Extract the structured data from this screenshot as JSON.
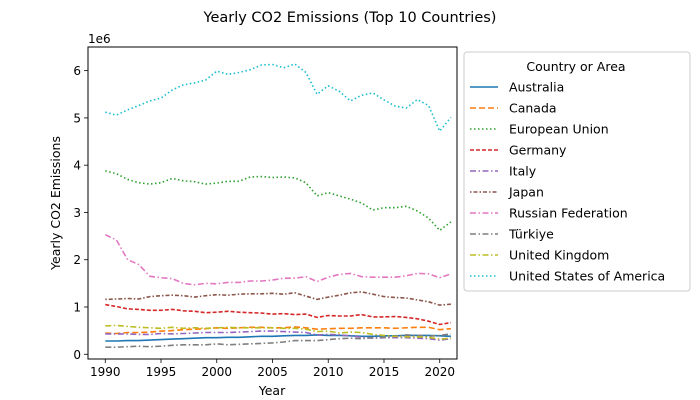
{
  "chart_data": {
    "type": "line",
    "title": "Yearly CO2 Emissions (Top 10 Countries)",
    "xlabel": "Year",
    "ylabel": "Yearly CO2 Emissions",
    "y_offset_label": "1e6",
    "xlim": [
      1988.45,
      2021.55
    ],
    "ylim": [
      -0.1,
      6.5
    ],
    "x_ticks": [
      1990,
      1995,
      2000,
      2005,
      2010,
      2015,
      2020
    ],
    "y_ticks": [
      0,
      1,
      2,
      3,
      4,
      5,
      6
    ],
    "grid": false,
    "legend": {
      "title": "Country or Area",
      "placement": "outside-right"
    },
    "x": [
      1990,
      1991,
      1992,
      1993,
      1994,
      1995,
      1996,
      1997,
      1998,
      1999,
      2000,
      2001,
      2002,
      2003,
      2004,
      2005,
      2006,
      2007,
      2008,
      2009,
      2010,
      2011,
      2012,
      2013,
      2014,
      2015,
      2016,
      2017,
      2018,
      2019,
      2020,
      2021
    ],
    "series": [
      {
        "name": "Australia",
        "color": "#1f77b4",
        "dash": "solid",
        "values": [
          0.28,
          0.28,
          0.29,
          0.29,
          0.3,
          0.31,
          0.32,
          0.33,
          0.34,
          0.35,
          0.35,
          0.36,
          0.36,
          0.37,
          0.38,
          0.38,
          0.39,
          0.4,
          0.4,
          0.41,
          0.4,
          0.4,
          0.39,
          0.38,
          0.38,
          0.39,
          0.39,
          0.4,
          0.4,
          0.4,
          0.39,
          0.38
        ]
      },
      {
        "name": "Canada",
        "color": "#ff7f0e",
        "dash": "dashed",
        "values": [
          0.45,
          0.44,
          0.46,
          0.46,
          0.47,
          0.49,
          0.5,
          0.52,
          0.53,
          0.54,
          0.56,
          0.55,
          0.56,
          0.57,
          0.57,
          0.56,
          0.56,
          0.58,
          0.56,
          0.53,
          0.54,
          0.55,
          0.55,
          0.56,
          0.56,
          0.56,
          0.55,
          0.56,
          0.57,
          0.57,
          0.52,
          0.54
        ]
      },
      {
        "name": "European Union",
        "color": "#2ca02c",
        "dash": "dotted",
        "values": [
          3.88,
          3.82,
          3.7,
          3.63,
          3.6,
          3.63,
          3.72,
          3.67,
          3.65,
          3.6,
          3.62,
          3.66,
          3.66,
          3.75,
          3.76,
          3.74,
          3.75,
          3.73,
          3.63,
          3.35,
          3.42,
          3.35,
          3.28,
          3.2,
          3.05,
          3.1,
          3.1,
          3.13,
          3.03,
          2.88,
          2.62,
          2.8
        ]
      },
      {
        "name": "Germany",
        "color": "#d62728",
        "dash": "densedash",
        "values": [
          1.05,
          1.01,
          0.96,
          0.95,
          0.93,
          0.93,
          0.95,
          0.92,
          0.91,
          0.88,
          0.89,
          0.91,
          0.89,
          0.88,
          0.87,
          0.85,
          0.86,
          0.84,
          0.85,
          0.78,
          0.82,
          0.81,
          0.81,
          0.84,
          0.79,
          0.79,
          0.8,
          0.78,
          0.75,
          0.7,
          0.63,
          0.67
        ]
      },
      {
        "name": "Italy",
        "color": "#9467bd",
        "dash": "dashdot",
        "values": [
          0.43,
          0.43,
          0.43,
          0.42,
          0.42,
          0.44,
          0.43,
          0.44,
          0.45,
          0.46,
          0.46,
          0.46,
          0.47,
          0.48,
          0.49,
          0.49,
          0.48,
          0.47,
          0.46,
          0.41,
          0.42,
          0.41,
          0.39,
          0.36,
          0.34,
          0.35,
          0.35,
          0.35,
          0.34,
          0.33,
          0.3,
          0.33
        ]
      },
      {
        "name": "Japan",
        "color": "#8c564b",
        "dash": "dotdash",
        "values": [
          1.16,
          1.17,
          1.18,
          1.17,
          1.22,
          1.24,
          1.25,
          1.24,
          1.21,
          1.24,
          1.26,
          1.25,
          1.27,
          1.28,
          1.28,
          1.29,
          1.27,
          1.3,
          1.23,
          1.16,
          1.21,
          1.25,
          1.3,
          1.32,
          1.27,
          1.22,
          1.2,
          1.19,
          1.15,
          1.11,
          1.04,
          1.06
        ]
      },
      {
        "name": "Russian Federation",
        "color": "#e377c2",
        "dash": "dashdot",
        "values": [
          2.53,
          2.42,
          2.0,
          1.9,
          1.65,
          1.62,
          1.6,
          1.5,
          1.47,
          1.5,
          1.49,
          1.52,
          1.52,
          1.55,
          1.55,
          1.57,
          1.61,
          1.61,
          1.64,
          1.54,
          1.63,
          1.69,
          1.71,
          1.64,
          1.63,
          1.63,
          1.63,
          1.66,
          1.71,
          1.7,
          1.62,
          1.7
        ]
      },
      {
        "name": "Türkiye",
        "color": "#7f7f7f",
        "dash": "dashdot",
        "values": [
          0.15,
          0.15,
          0.16,
          0.17,
          0.16,
          0.17,
          0.19,
          0.2,
          0.2,
          0.2,
          0.22,
          0.2,
          0.21,
          0.22,
          0.23,
          0.24,
          0.26,
          0.29,
          0.29,
          0.29,
          0.31,
          0.33,
          0.34,
          0.33,
          0.35,
          0.36,
          0.38,
          0.41,
          0.4,
          0.38,
          0.4,
          0.43
        ]
      },
      {
        "name": "United Kingdom",
        "color": "#bcbd22",
        "dash": "dashdot",
        "values": [
          0.6,
          0.61,
          0.59,
          0.57,
          0.56,
          0.55,
          0.57,
          0.55,
          0.56,
          0.55,
          0.56,
          0.57,
          0.56,
          0.56,
          0.56,
          0.56,
          0.55,
          0.55,
          0.53,
          0.48,
          0.49,
          0.45,
          0.47,
          0.46,
          0.42,
          0.4,
          0.38,
          0.37,
          0.37,
          0.36,
          0.32,
          0.34
        ]
      },
      {
        "name": "United States of America",
        "color": "#17becf",
        "dash": "dotted",
        "values": [
          5.12,
          5.06,
          5.17,
          5.26,
          5.36,
          5.42,
          5.59,
          5.7,
          5.74,
          5.8,
          5.99,
          5.92,
          5.96,
          6.02,
          6.12,
          6.13,
          6.06,
          6.14,
          5.96,
          5.5,
          5.68,
          5.56,
          5.36,
          5.48,
          5.53,
          5.38,
          5.25,
          5.21,
          5.39,
          5.26,
          4.72,
          5.01
        ]
      }
    ]
  }
}
